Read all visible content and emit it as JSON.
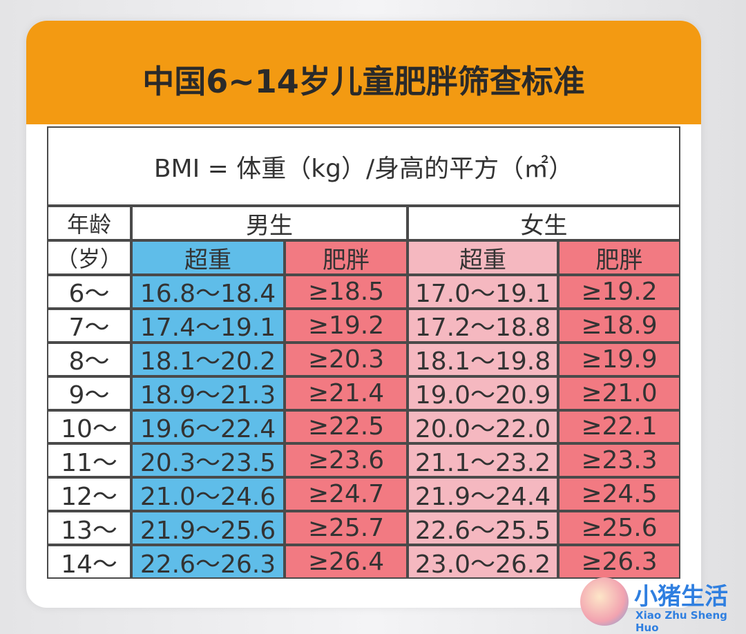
{
  "header": {
    "title": "中国6~14岁儿童肥胖筛查标准"
  },
  "formula": "BMI = 体重（kg）/身高的平方（㎡）",
  "table": {
    "age_header": [
      "年龄",
      "（岁）"
    ],
    "groups": [
      "男生",
      "女生"
    ],
    "subheaders": [
      "超重",
      "肥胖",
      "超重",
      "肥胖"
    ],
    "rows": [
      [
        "6～",
        "16.8～18.4",
        "≥18.5",
        "17.0～19.1",
        "≥19.2"
      ],
      [
        "7～",
        "17.4～19.1",
        "≥19.2",
        "17.2～18.8",
        "≥18.9"
      ],
      [
        "8～",
        "18.1～20.2",
        "≥20.3",
        "18.1～19.8",
        "≥19.9"
      ],
      [
        "9～",
        "18.9～21.3",
        "≥21.4",
        "19.0～20.9",
        "≥21.0"
      ],
      [
        "10～",
        "19.6～22.4",
        "≥22.5",
        "20.0～22.0",
        "≥22.1"
      ],
      [
        "11～",
        "20.3～23.5",
        "≥23.6",
        "21.1～23.2",
        "≥23.3"
      ],
      [
        "12～",
        "21.0～24.6",
        "≥24.7",
        "21.9～24.4",
        "≥24.5"
      ],
      [
        "13～",
        "21.9～25.6",
        "≥25.7",
        "22.6～25.5",
        "≥25.6"
      ],
      [
        "14～",
        "22.6～26.3",
        "≥26.4",
        "23.0～26.2",
        "≥26.3"
      ]
    ]
  },
  "watermark": {
    "name": "小猪生活",
    "pinyin": "Xiao Zhu Sheng Huo"
  }
}
